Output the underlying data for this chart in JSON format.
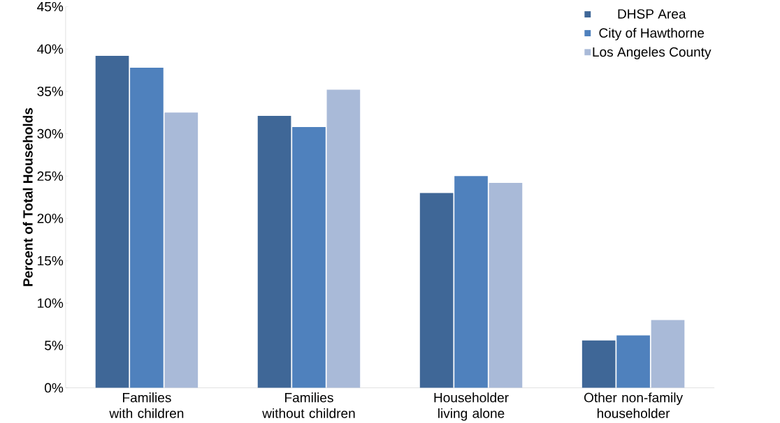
{
  "chart_data": {
    "type": "bar",
    "ylabel": "Percent of Total Households",
    "categories": [
      "Families with children",
      "Families without children",
      "Householder living alone",
      "Other non-family householder"
    ],
    "series": [
      {
        "name": "DHSP Area",
        "color": "#3f6797",
        "values": [
          39.2,
          32.1,
          23.0,
          5.6
        ]
      },
      {
        "name": "City of Hawthorne",
        "color": "#4f81bd",
        "values": [
          37.8,
          30.8,
          25.0,
          6.2
        ]
      },
      {
        "name": "Los Angeles County",
        "color": "#a9bad8",
        "values": [
          32.5,
          35.2,
          24.2,
          8.0
        ]
      }
    ],
    "ylim": [
      0,
      45
    ],
    "yticks": [
      {
        "value": 0,
        "label": "0%"
      },
      {
        "value": 5,
        "label": "5%"
      },
      {
        "value": 10,
        "label": "10%"
      },
      {
        "value": 15,
        "label": "15%"
      },
      {
        "value": 20,
        "label": "20%"
      },
      {
        "value": 25,
        "label": "25%"
      },
      {
        "value": 30,
        "label": "30%"
      },
      {
        "value": 35,
        "label": "35%"
      },
      {
        "value": 40,
        "label": "40%"
      },
      {
        "value": 45,
        "label": "45%"
      }
    ],
    "grid": false,
    "legend": "top right"
  }
}
